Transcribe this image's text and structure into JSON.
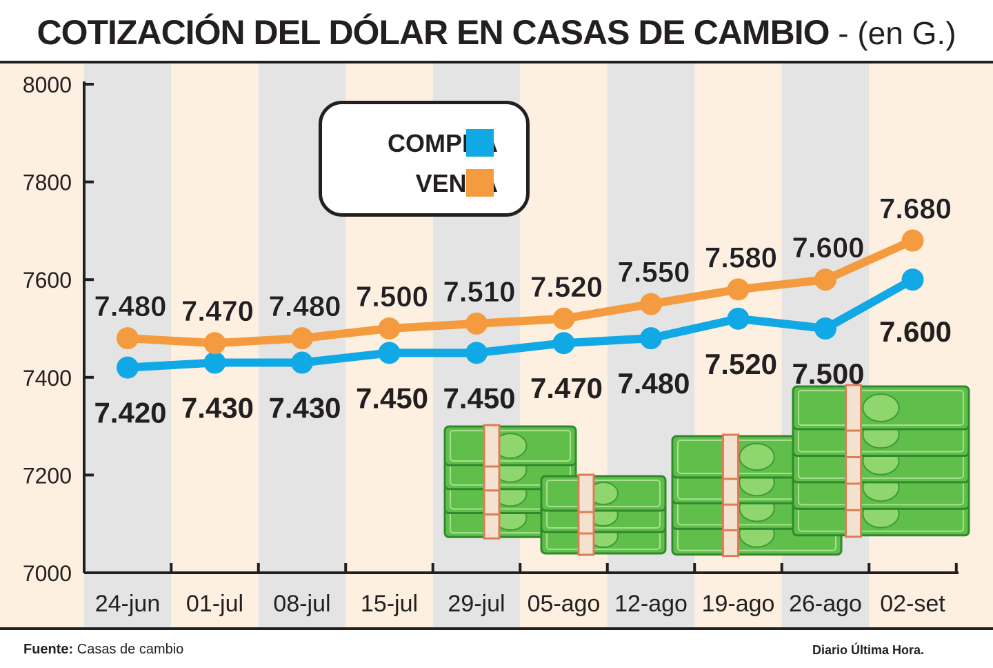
{
  "title": {
    "main": "COTIZACIÓN DEL DÓLAR EN CASAS DE CAMBIO",
    "sub": " - (en G.)"
  },
  "footer": {
    "source_label": "Fuente:",
    "source_value": " Casas de cambio",
    "credit": "Diario Última Hora."
  },
  "colors": {
    "compra": "#11a8e6",
    "venta": "#f49b3f",
    "band_gray": "#e4e4e4",
    "band_cream": "#fdf0e1",
    "axis": "#231f20"
  },
  "chart_data": {
    "type": "line",
    "categories": [
      "24-jun",
      "01-jul",
      "08-jul",
      "15-jul",
      "29-jul",
      "05-ago",
      "12-ago",
      "19-ago",
      "26-ago",
      "02-set"
    ],
    "ylim": [
      7000,
      8000
    ],
    "yticks": [
      "8000",
      "7800",
      "7600",
      "7400",
      "7200",
      "7000"
    ],
    "legend_placement": "top-center",
    "series": [
      {
        "name": "COMPRA",
        "color": "#11a8e6",
        "values": [
          7420,
          7430,
          7430,
          7450,
          7450,
          7470,
          7480,
          7520,
          7500,
          7600
        ],
        "labels": [
          "7.420",
          "7.430",
          "7.430",
          "7.450",
          "7.450",
          "7.470",
          "7.480",
          "7.520",
          "7.500",
          "7.600"
        ]
      },
      {
        "name": "VENTA",
        "color": "#f49b3f",
        "values": [
          7480,
          7470,
          7480,
          7500,
          7510,
          7520,
          7550,
          7580,
          7600,
          7680
        ],
        "labels": [
          "7.480",
          "7.470",
          "7.480",
          "7.500",
          "7.510",
          "7.520",
          "7.550",
          "7.580",
          "7.600",
          "7.680"
        ]
      }
    ]
  }
}
